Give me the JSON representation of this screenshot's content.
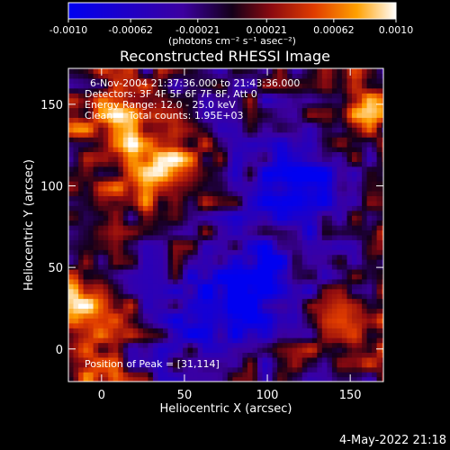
{
  "chart_data": {
    "type": "heatmap",
    "title": "Reconstructed RHESSI Image",
    "xlabel": "Heliocentric X (arcsec)",
    "ylabel": "Heliocentric Y (arcsec)",
    "xlim": [
      -20,
      170
    ],
    "ylim": [
      -20,
      172
    ],
    "xticks": [
      0,
      50,
      100,
      150
    ],
    "yticks": [
      0,
      50,
      100,
      150
    ],
    "colorbar": {
      "range": [
        -0.001,
        0.001
      ],
      "ticks": [
        "-0.0010",
        "-0.00062",
        "-0.00021",
        "0.00021",
        "0.00062",
        "0.0010"
      ],
      "tick_values": [
        -0.001,
        -0.00062,
        -0.00021,
        0.00021,
        0.00062,
        0.001
      ],
      "unit_label": "(photons cm⁻² s⁻¹ asec⁻²)"
    },
    "annotations": [
      "6-Nov-2004 21:37:36.000 to 21:43:36.000",
      "Detectors: 3F 4F 5F 6F 7F 8F, Att 0",
      "Energy Range: 12.0 - 25.0 keV",
      "Clean     Total counts: 1.95E+03"
    ],
    "peak_label": "Position of Peak = [31,114]",
    "peak": [
      31,
      114
    ],
    "emission_regions": [
      {
        "x": 31,
        "y": 114,
        "radius": 28,
        "level": 1.0
      },
      {
        "x": 10,
        "y": 150,
        "radius": 22,
        "level": 0.55
      },
      {
        "x": -15,
        "y": 135,
        "radius": 14,
        "level": 0.5
      },
      {
        "x": -10,
        "y": 30,
        "radius": 22,
        "level": 0.8
      },
      {
        "x": -5,
        "y": -8,
        "radius": 18,
        "level": 0.7
      },
      {
        "x": 160,
        "y": 150,
        "radius": 22,
        "level": 0.7
      },
      {
        "x": 150,
        "y": 10,
        "radius": 25,
        "level": 0.6
      },
      {
        "x": 165,
        "y": 60,
        "radius": 12,
        "level": 0.45
      }
    ],
    "negative_regions": [
      {
        "x": 120,
        "y": 105,
        "radius": 28,
        "level": -0.8
      },
      {
        "x": 95,
        "y": 40,
        "radius": 32,
        "level": -0.75
      },
      {
        "x": 60,
        "y": 20,
        "radius": 25,
        "level": -0.55
      }
    ]
  },
  "footer": {
    "timestamp": "4-May-2022 21:18"
  }
}
